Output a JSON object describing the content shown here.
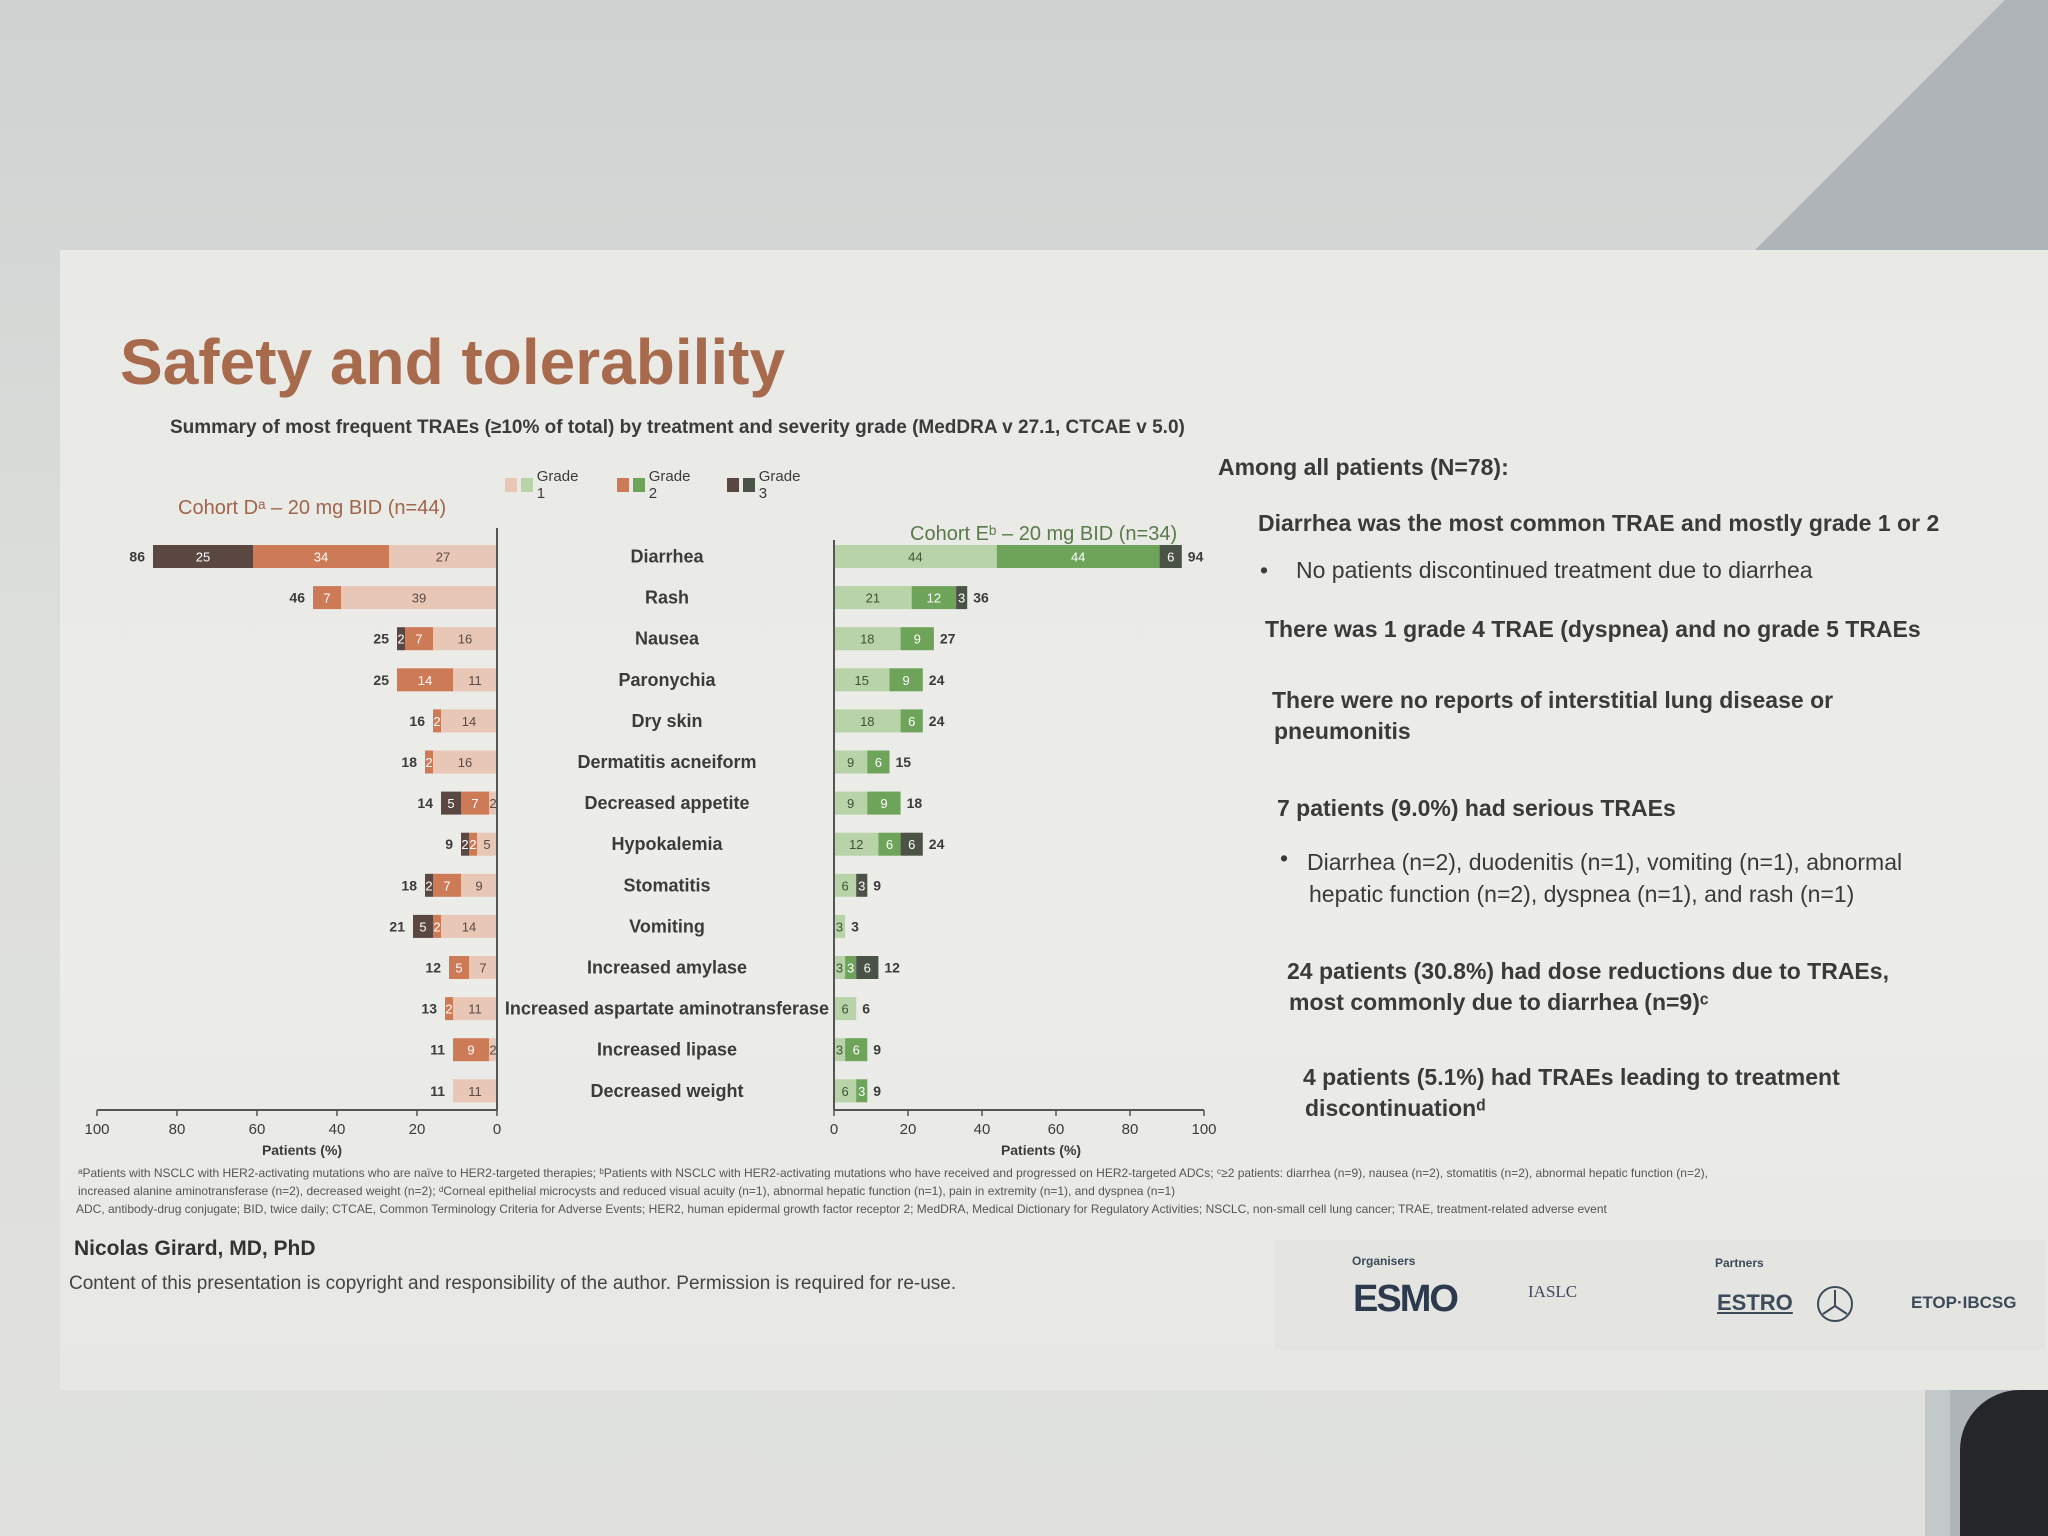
{
  "title": "Safety and tolerability",
  "subtitle": "Summary of most frequent TRAEs (≥10% of total) by treatment and severity grade (MedDRA v 27.1, CTCAE v 5.0)",
  "legend": [
    "Grade 1",
    "Grade 2",
    "Grade 3"
  ],
  "colors": {
    "d_g1": "#e8c7b6",
    "d_g2": "#cd7a57",
    "d_g3": "#5a4742",
    "e_g1": "#b8d3a8",
    "e_g2": "#6ea35a",
    "e_g3": "#4b5346",
    "title": "#a86a4d"
  },
  "chart_data": [
    {
      "type": "bar",
      "orientation": "horizontal-stacked",
      "title": "Cohort Dᵃ – 20 mg BID (n=44)",
      "xlabel": "Patients (%)",
      "xlim": [
        100,
        0
      ],
      "ticks": [
        "100",
        "80",
        "60",
        "40",
        "20",
        "0"
      ],
      "categories": [
        "Diarrhea",
        "Rash",
        "Nausea",
        "Paronychia",
        "Dry skin",
        "Dermatitis acneiform",
        "Decreased appetite",
        "Hypokalemia",
        "Stomatitis",
        "Vomiting",
        "Increased amylase",
        "Increased aspartate aminotransferase",
        "Increased lipase",
        "Decreased weight"
      ],
      "series": [
        {
          "name": "Grade 1",
          "values": [
            27,
            39,
            16,
            11,
            14,
            16,
            2,
            5,
            9,
            14,
            7,
            11,
            2,
            11
          ],
          "labels": [
            "27",
            "39",
            "16",
            "11",
            "14",
            "16",
            "2",
            "5",
            "9",
            "14",
            "7",
            "11",
            "2",
            "11"
          ]
        },
        {
          "name": "Grade 2",
          "values": [
            34,
            7,
            7,
            14,
            2,
            2,
            7,
            2,
            7,
            2,
            5,
            2,
            9,
            0
          ],
          "labels": [
            "34",
            "7",
            "7",
            "14",
            "2",
            "2",
            "7",
            "2",
            "7",
            "2",
            "5",
            "2",
            "9",
            ""
          ]
        },
        {
          "name": "Grade 3",
          "values": [
            25,
            0,
            2,
            0,
            0,
            0,
            5,
            2,
            2,
            5,
            0,
            0,
            0,
            0
          ],
          "labels": [
            "25",
            "",
            "2",
            "",
            "",
            "",
            "5",
            "2",
            "2",
            "5",
            "",
            "",
            "",
            ""
          ]
        }
      ],
      "totals": [
        "86",
        "46",
        "25",
        "25",
        "16",
        "18",
        "14",
        "9",
        "18",
        "21",
        "12",
        "13",
        "11",
        "11"
      ]
    },
    {
      "type": "bar",
      "orientation": "horizontal-stacked",
      "title": "Cohort Eᵇ – 20 mg BID (n=34)",
      "xlabel": "Patients (%)",
      "xlim": [
        0,
        100
      ],
      "ticks": [
        "0",
        "20",
        "40",
        "60",
        "80",
        "100"
      ],
      "categories": [
        "Diarrhea",
        "Rash",
        "Nausea",
        "Paronychia",
        "Dry skin",
        "Dermatitis acneiform",
        "Decreased appetite",
        "Hypokalemia",
        "Stomatitis",
        "Vomiting",
        "Increased amylase",
        "Increased aspartate aminotransferase",
        "Increased lipase",
        "Decreased weight"
      ],
      "series": [
        {
          "name": "Grade 1",
          "values": [
            44,
            21,
            18,
            15,
            18,
            9,
            9,
            12,
            6,
            3,
            3,
            6,
            3,
            6
          ],
          "labels": [
            "44",
            "21",
            "18",
            "15",
            "18",
            "9",
            "9",
            "12",
            "6",
            "3",
            "3",
            "6",
            "3",
            "6"
          ]
        },
        {
          "name": "Grade 2",
          "values": [
            44,
            12,
            9,
            9,
            6,
            6,
            9,
            6,
            0,
            0,
            3,
            0,
            6,
            3
          ],
          "labels": [
            "44",
            "12",
            "9",
            "9",
            "6",
            "6",
            "9",
            "6",
            "",
            "",
            "3",
            "",
            "6",
            "3"
          ]
        },
        {
          "name": "Grade 3",
          "values": [
            6,
            3,
            0,
            0,
            0,
            0,
            0,
            6,
            3,
            0,
            6,
            0,
            0,
            0
          ],
          "labels": [
            "6",
            "3",
            "",
            "",
            "",
            "",
            "",
            "6",
            "3",
            "",
            "6",
            "",
            "",
            ""
          ]
        }
      ],
      "totals": [
        "94",
        "36",
        "27",
        "24",
        "24",
        "15",
        "18",
        "24",
        "9",
        "3",
        "12",
        "6",
        "9",
        "9"
      ]
    }
  ],
  "right_panel": {
    "heading": "Among all patients (N=78):",
    "p1": "Diarrhea was the most common TRAE and mostly grade 1 or 2",
    "p1_bullet": "No patients discontinued treatment due to diarrhea",
    "p2": "There was 1 grade 4 TRAE (dyspnea) and no grade 5 TRAEs",
    "p3_line1": "There were no reports of interstitial lung disease or",
    "p3_line2": "pneumonitis",
    "p4": "7 patients (9.0%) had serious TRAEs",
    "p4_bullet_line1": "Diarrhea (n=2), duodenitis (n=1), vomiting (n=1), abnormal",
    "p4_bullet_line2": "hepatic function (n=2), dyspnea (n=1), and rash (n=1)",
    "p5_line1": "24 patients (30.8%) had dose reductions due to TRAEs,",
    "p5_line2": "most commonly due to diarrhea (n=9)ᶜ",
    "p6_line1": "4 patients (5.1%) had TRAEs leading to treatment",
    "p6_line2": "discontinuationᵈ"
  },
  "footnotes": {
    "line1": "ᵃPatients with NSCLC with HER2-activating mutations who are naïve to HER2-targeted therapies; ᵇPatients with NSCLC with HER2-activating mutations who have received and progressed on HER2-targeted ADCs; ᶜ≥2 patients: diarrhea (n=9), nausea (n=2), stomatitis (n=2), abnormal hepatic function (n=2),",
    "line2": "increased alanine aminotransferase (n=2), decreased weight (n=2); ᵈCorneal epithelial microcysts and reduced visual acuity (n=1), abnormal hepatic function (n=1), pain in extremity (n=1), and dyspnea (n=1)",
    "line3": "ADC, antibody-drug conjugate; BID, twice daily; CTCAE, Common Terminology Criteria for Adverse Events; HER2, human epidermal growth factor receptor 2; MedDRA, Medical Dictionary for Regulatory Activities; NSCLC, non-small cell lung cancer; TRAE, treatment-related adverse event"
  },
  "author": "Nicolas Girard, MD, PhD",
  "copyright": "Content of this presentation is copyright and responsibility of the author. Permission is required for re-use.",
  "logos": {
    "organisers_label": "Organisers",
    "partners_label": "Partners",
    "esmo": "ESMO",
    "iaslc": "IASLC",
    "estro": "ESTRO",
    "etop": "ETOP·IBCSG"
  }
}
